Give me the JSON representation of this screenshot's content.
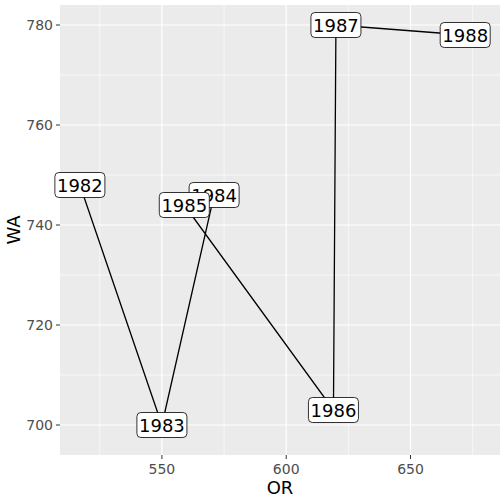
{
  "chart_data": {
    "type": "line",
    "x_label": "OR",
    "y_label": "WA",
    "x": [
      517,
      550,
      571,
      559,
      619,
      620,
      672
    ],
    "values": [
      748,
      700,
      746,
      744,
      703,
      780,
      778
    ],
    "point_labels": [
      "1982",
      "1983",
      "1984",
      "1985",
      "1986",
      "1987",
      "1988"
    ],
    "color": "#000000",
    "marker": "label",
    "xlim": [
      509,
      686
    ],
    "xticks": [
      550,
      600,
      650
    ],
    "ylim": [
      694,
      784
    ],
    "yticks": [
      700,
      720,
      740,
      760,
      780
    ],
    "grid": true
  }
}
